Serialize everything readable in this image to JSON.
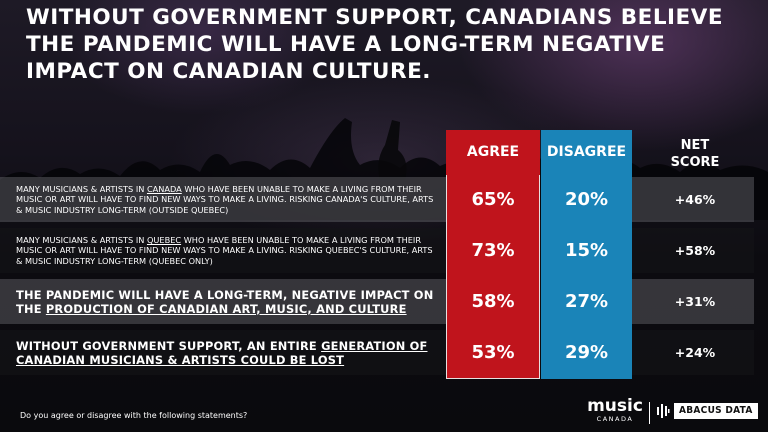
{
  "title": "WITHOUT GOVERNMENT SUPPORT, CANADIANS BELIEVE THE PANDEMIC WILL HAVE A LONG-TERM NEGATIVE IMPACT ON CANADIAN CULTURE.",
  "colors": {
    "agree": "#c0141c",
    "disagree": "#1a84b8"
  },
  "chart_data": {
    "type": "table",
    "columns": [
      "AGREE",
      "DISAGREE",
      "NET SCORE"
    ],
    "net_header": [
      "NET",
      "SCORE"
    ],
    "rows": [
      {
        "statement_parts": [
          "MANY MUSICIANS & ARTISTS IN ",
          "CANADA",
          " WHO HAVE BEEN UNABLE TO MAKE A LIVING FROM THEIR MUSIC OR ART WILL HAVE TO FIND NEW WAYS TO MAKE A LIVING. RISKING CANADA'S CULTURE, ARTS & MUSIC INDUSTRY LONG-TERM (OUTSIDE QUEBEC)"
        ],
        "agree": "65%",
        "disagree": "20%",
        "net": "+46%"
      },
      {
        "statement_parts": [
          "MANY MUSICIANS & ARTISTS IN ",
          "QUEBEC",
          " WHO HAVE BEEN UNABLE TO MAKE A LIVING FROM THEIR MUSIC OR ART WILL HAVE TO FIND NEW WAYS TO MAKE A LIVING. RISKING QUEBEC'S CULTURE, ARTS & MUSIC INDUSTRY LONG-TERM (QUEBEC ONLY)"
        ],
        "agree": "73%",
        "disagree": "15%",
        "net": "+58%"
      },
      {
        "statement_parts": [
          "THE PANDEMIC WILL HAVE A LONG-TERM, NEGATIVE IMPACT ON THE ",
          "PRODUCTION OF CANADIAN ART, MUSIC, AND CULTURE",
          ""
        ],
        "agree": "58%",
        "disagree": "27%",
        "net": "+31%"
      },
      {
        "statement_parts": [
          "WITHOUT GOVERNMENT SUPPORT, AN ENTIRE ",
          "GENERATION OF CANADIAN MUSICIANS & ARTISTS COULD BE LOST",
          ""
        ],
        "agree": "53%",
        "disagree": "29%",
        "net": "+24%"
      }
    ]
  },
  "footnote": "Do you agree or disagree with the following statements?",
  "logos": {
    "music": "music",
    "music_sub": "CANADA",
    "abacus": "ABACUS DATA"
  }
}
